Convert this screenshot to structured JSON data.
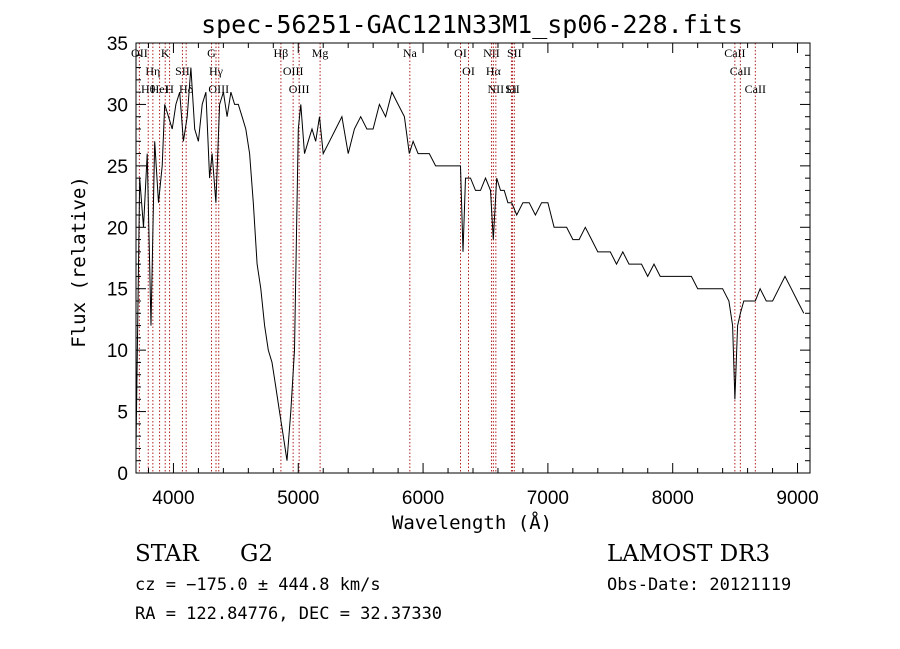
{
  "chart_data": {
    "type": "line",
    "title": "spec-56251-GAC121N33M1_sp06-228.fits",
    "xlabel": "Wavelength (Å)",
    "ylabel": "Flux (relative)",
    "xlim": [
      3700,
      9100
    ],
    "ylim": [
      0,
      35
    ],
    "xticks": [
      4000,
      5000,
      6000,
      7000,
      8000,
      9000
    ],
    "xtick_labels": [
      "4000",
      "5000",
      "6000",
      "7000",
      "8000",
      "9000"
    ],
    "yticks": [
      0,
      5,
      10,
      15,
      20,
      25,
      30,
      35
    ],
    "ytick_labels": [
      "0",
      "5",
      "10",
      "15",
      "20",
      "25",
      "30",
      "35"
    ],
    "grid": false,
    "legend": "none",
    "line_color": "#000000",
    "marker_color": "#b22222",
    "series": [
      {
        "x": [
          3700,
          3730,
          3760,
          3790,
          3820,
          3850,
          3880,
          3910,
          3930,
          3960,
          3990,
          4020,
          4050,
          4080,
          4110,
          4140,
          4170,
          4200,
          4230,
          4260,
          4290,
          4310,
          4340,
          4370,
          4400,
          4430,
          4460,
          4490,
          4520,
          4550,
          4580,
          4610,
          4640,
          4670,
          4700,
          4730,
          4760,
          4790,
          4820,
          4850,
          4880,
          4910,
          4940,
          4970,
          5000,
          5020,
          5050,
          5080,
          5110,
          5140,
          5170,
          5200,
          5250,
          5300,
          5350,
          5400,
          5450,
          5500,
          5550,
          5600,
          5650,
          5700,
          5750,
          5800,
          5850,
          5890,
          5920,
          5960,
          6000,
          6050,
          6100,
          6150,
          6200,
          6250,
          6300,
          6320,
          6340,
          6380,
          6420,
          6460,
          6500,
          6540,
          6563,
          6590,
          6620,
          6650,
          6680,
          6710,
          6750,
          6800,
          6850,
          6900,
          6950,
          7000,
          7050,
          7100,
          7150,
          7200,
          7250,
          7300,
          7350,
          7400,
          7450,
          7500,
          7550,
          7600,
          7650,
          7700,
          7750,
          7800,
          7850,
          7900,
          7950,
          8000,
          8050,
          8100,
          8150,
          8200,
          8250,
          8300,
          8350,
          8400,
          8450,
          8480,
          8498,
          8520,
          8542,
          8570,
          8600,
          8640,
          8662,
          8700,
          8750,
          8800,
          8850,
          8900,
          8950,
          9000,
          9050
        ],
        "y": [
          2,
          24,
          20,
          26,
          12,
          27,
          22,
          25,
          30,
          29,
          28,
          30,
          31,
          27,
          29,
          33,
          28,
          27,
          30,
          31,
          24,
          26,
          22,
          30,
          31,
          29,
          31,
          30,
          30,
          29,
          28,
          26,
          22,
          17,
          15,
          12,
          10,
          9,
          7,
          5,
          3,
          1,
          5,
          10,
          28,
          30,
          26,
          27,
          28,
          27,
          29,
          26,
          27,
          28,
          29,
          26,
          28,
          29,
          28,
          28,
          30,
          29,
          31,
          30,
          29,
          26,
          27,
          26,
          26,
          26,
          25,
          25,
          25,
          25,
          25,
          18,
          24,
          24,
          23,
          23,
          24,
          23,
          19,
          24,
          23,
          23,
          22,
          22,
          21,
          22,
          22,
          21,
          22,
          22,
          20,
          20,
          20,
          19,
          19,
          20,
          19,
          18,
          18,
          18,
          17,
          18,
          17,
          17,
          17,
          16,
          17,
          16,
          16,
          16,
          16,
          16,
          16,
          15,
          15,
          15,
          15,
          15,
          14,
          12,
          6,
          12,
          13,
          14,
          14,
          14,
          14,
          15,
          14,
          14,
          15,
          16,
          15,
          14,
          13
        ]
      }
    ],
    "lines": [
      {
        "name": "OII",
        "x": 3727
      },
      {
        "name": "Hη",
        "x": 3835
      },
      {
        "name": "Hθ",
        "x": 3798
      },
      {
        "name": "K",
        "x": 3934
      },
      {
        "name": "H",
        "x": 3969
      },
      {
        "name": "HeI",
        "x": 3889
      },
      {
        "name": "SII",
        "x": 4072
      },
      {
        "name": "Hδ",
        "x": 4102
      },
      {
        "name": "G",
        "x": 4305
      },
      {
        "name": "Hγ",
        "x": 4341
      },
      {
        "name": "OIII",
        "x": 4363
      },
      {
        "name": "Hβ",
        "x": 4861
      },
      {
        "name": "OIII",
        "x": 4959
      },
      {
        "name": "OIII",
        "x": 5007
      },
      {
        "name": "Mg",
        "x": 5175
      },
      {
        "name": "Na",
        "x": 5894
      },
      {
        "name": "OI",
        "x": 6300
      },
      {
        "name": "OI",
        "x": 6364
      },
      {
        "name": "NII",
        "x": 6548
      },
      {
        "name": "Hα",
        "x": 6563
      },
      {
        "name": "NII",
        "x": 6583
      },
      {
        "name": "Li",
        "x": 6708
      },
      {
        "name": "SII",
        "x": 6716
      },
      {
        "name": "SII",
        "x": 6731
      },
      {
        "name": "CaII",
        "x": 8498
      },
      {
        "name": "CaII",
        "x": 8542
      },
      {
        "name": "CaII",
        "x": 8662
      }
    ]
  },
  "footer": {
    "class": "STAR",
    "subclass": "G2",
    "cz": "cz = −175.0 ± 444.8 km/s",
    "coords": "RA = 122.84776, DEC =  32.37330",
    "survey": "LAMOST DR3",
    "obsdate": "Obs-Date: 20121119"
  }
}
